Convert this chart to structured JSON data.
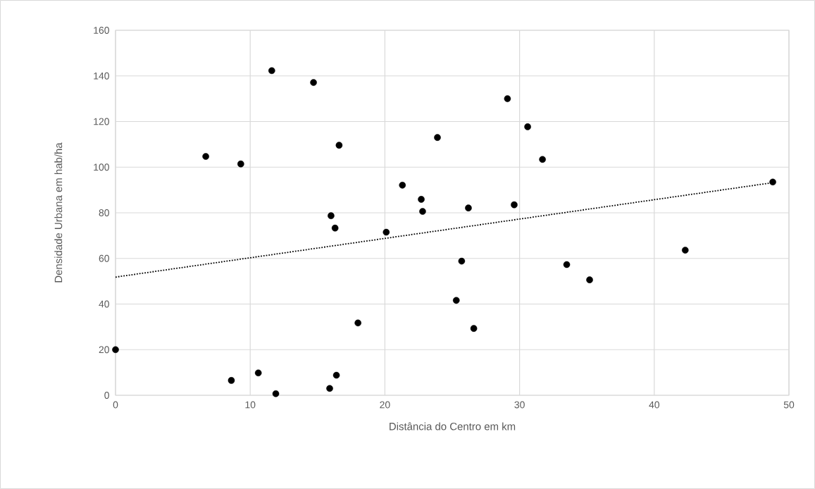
{
  "chart_data": {
    "type": "scatter",
    "xlabel": "Distância do Centro em km",
    "ylabel": "Densidade Urbana em hab/ha",
    "xlim": [
      0,
      50
    ],
    "xticks": [
      0,
      10,
      20,
      30,
      40,
      50
    ],
    "ylim": [
      0,
      160
    ],
    "yticks": [
      0,
      20,
      40,
      60,
      80,
      100,
      120,
      140,
      160
    ],
    "grid": true,
    "marker": "circle",
    "series": [
      {
        "color": "#000000",
        "x": [
          0,
          6.7,
          9.3,
          8.6,
          10.6,
          11.9,
          11.6,
          14.7,
          16.6,
          16.0,
          16.3,
          18.0,
          15.9,
          16.4,
          20.1,
          21.3,
          22.7,
          22.8,
          23.9,
          26.2,
          29.6,
          29.1,
          30.6,
          31.7,
          48.8,
          25.7,
          33.5,
          35.2,
          42.3,
          25.3,
          26.6
        ],
        "values": [
          20,
          104.7,
          101.4,
          6.5,
          9.8,
          0.7,
          142.3,
          137.1,
          109.6,
          78.7,
          73.3,
          31.7,
          3.0,
          8.8,
          71.5,
          92.1,
          85.9,
          80.6,
          113.0,
          82.1,
          83.5,
          130.0,
          117.7,
          103.4,
          93.5,
          58.8,
          57.3,
          50.6,
          63.6,
          41.6,
          29.3
        ]
      },
      {
        "type": "line",
        "color": "#000000",
        "line_style": "dotted",
        "marker": "none",
        "x": [
          0,
          48.8
        ],
        "values": [
          51.8,
          93.2
        ]
      }
    ]
  }
}
